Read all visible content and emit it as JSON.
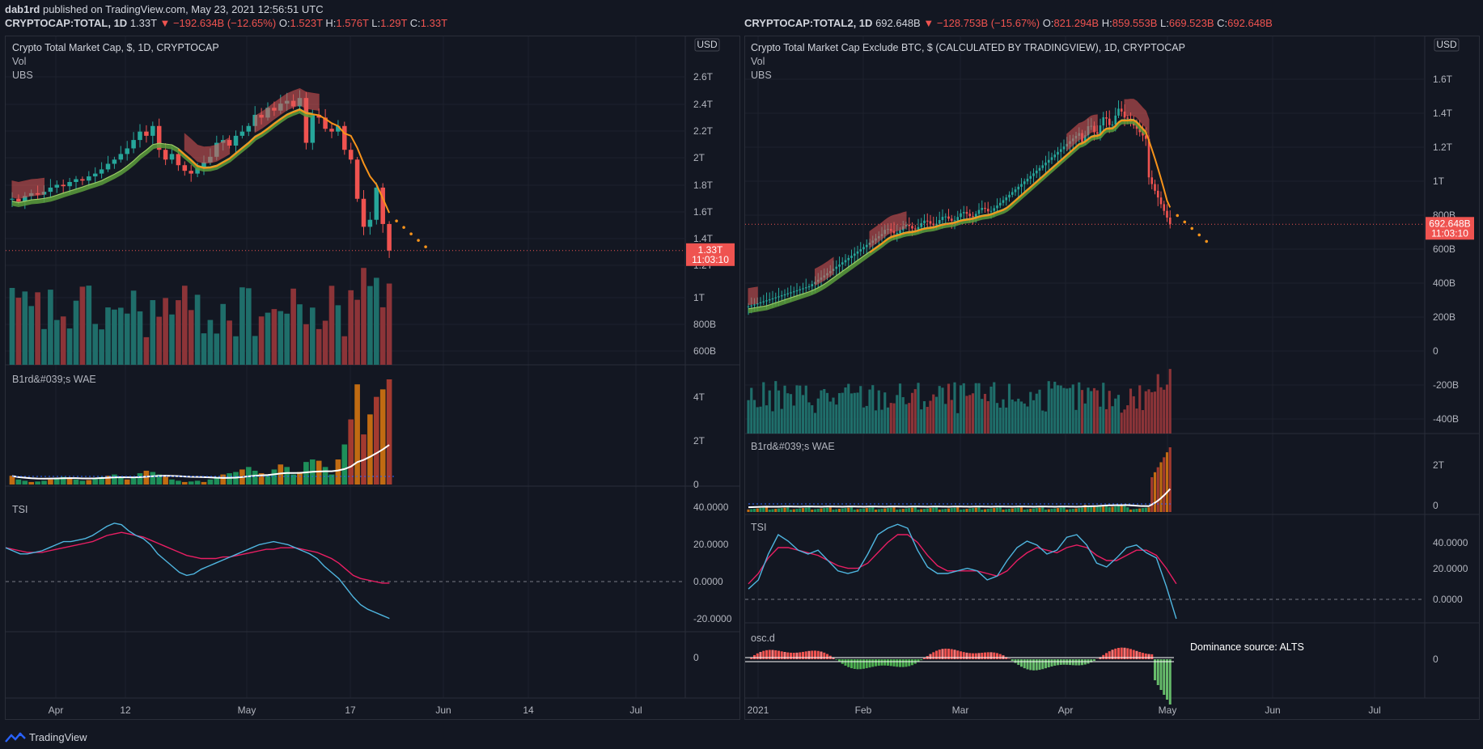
{
  "header": {
    "author": "dab1rd",
    "published": "published on TradingView.com, May 23, 2021 12:56:51 UTC"
  },
  "footer": {
    "brand": "TradingView"
  },
  "colors": {
    "bg": "#131722",
    "grid": "#1e222d",
    "up": "#26a69a",
    "down": "#ef5350",
    "vol_up": "#1f6e6a",
    "vol_down": "#8c3438",
    "orange": "#f7931a",
    "ma_green": "#5c9e3c",
    "tsi_blue": "#4fb6e0",
    "tsi_pink": "#e91e63",
    "wae_green": "#1e8f5a",
    "wae_orange": "#c06b12",
    "wae_red": "#a33a30"
  },
  "chart_data": [
    {
      "type": "candlestick",
      "symbol": "CRYPTOCAP:TOTAL, 1D",
      "ohlc_line": {
        "last": "1.33T",
        "change": "−192.634B (−12.65%)",
        "O": "1.523T",
        "H": "1.576T",
        "L": "1.29T",
        "C": "1.33T"
      },
      "title": "Crypto Total Market Cap, $, 1D, CRYPTOCAP",
      "indicators": [
        "Vol",
        "UBS"
      ],
      "currency_badge": "USD",
      "price_label": "1.33T",
      "countdown": "11:03:10",
      "price_axis": [
        "2.6T",
        "2.4T",
        "2.2T",
        "2T",
        "1.8T",
        "1.6T",
        "1.4T",
        "1.2T",
        "1T",
        "800B",
        "600B"
      ],
      "price_scale": "log",
      "x_labels": [
        "Apr",
        "12",
        "May",
        "17",
        "Jun",
        "14",
        "Jul"
      ],
      "close_approx": [
        1.7,
        1.68,
        1.72,
        1.74,
        1.73,
        1.75,
        1.78,
        1.8,
        1.79,
        1.82,
        1.84,
        1.83,
        1.86,
        1.88,
        1.91,
        1.95,
        1.98,
        2.02,
        2.06,
        2.12,
        2.18,
        2.15,
        2.22,
        2.05,
        1.98,
        2.02,
        1.94,
        1.9,
        1.88,
        1.92,
        1.96,
        2.0,
        2.1,
        2.12,
        2.08,
        2.15,
        2.18,
        2.22,
        2.3,
        2.28,
        2.35,
        2.33,
        2.38,
        2.4,
        2.36,
        2.42,
        2.1,
        2.3,
        2.28,
        2.2,
        2.18,
        2.22,
        2.05,
        1.98,
        1.7,
        1.5,
        1.55,
        1.78,
        1.52,
        1.33
      ],
      "wae": {
        "title": "B1rd&#039;s WAE",
        "axis": [
          "4T",
          "2T",
          "0"
        ],
        "values": [
          0.35,
          0.2,
          0.15,
          0.1,
          0.12,
          0.15,
          0.2,
          0.25,
          0.3,
          0.28,
          0.2,
          0.15,
          0.18,
          0.22,
          0.3,
          0.35,
          0.4,
          0.3,
          0.2,
          0.25,
          0.45,
          0.55,
          0.5,
          0.4,
          0.35,
          0.2,
          0.15,
          0.1,
          0.12,
          0.15,
          0.1,
          0.2,
          0.3,
          0.4,
          0.45,
          0.5,
          0.6,
          0.7,
          0.55,
          0.45,
          0.35,
          0.6,
          0.8,
          0.7,
          0.4,
          0.5,
          0.9,
          1.0,
          0.95,
          0.7,
          0.4,
          1.0,
          1.6,
          2.6,
          4.0,
          2.0,
          2.8,
          3.5,
          3.8,
          4.2
        ]
      },
      "tsi": {
        "title": "TSI",
        "axis": [
          "40.0000",
          "20.0000",
          "0.0000",
          "-20.0000"
        ],
        "tsi": [
          22,
          20,
          18,
          18,
          19,
          20,
          22,
          24,
          26,
          26,
          27,
          28,
          30,
          33,
          36,
          38,
          37,
          33,
          30,
          28,
          24,
          18,
          14,
          10,
          6,
          4,
          5,
          8,
          10,
          12,
          14,
          16,
          18,
          20,
          22,
          24,
          25,
          26,
          25,
          24,
          22,
          20,
          18,
          15,
          10,
          6,
          2,
          -4,
          -10,
          -15,
          -18,
          -20,
          -22,
          -24
        ],
        "signal": [
          22,
          21,
          20,
          19,
          19,
          19,
          20,
          21,
          22,
          23,
          24,
          25,
          26,
          28,
          30,
          31,
          32,
          31,
          30,
          29,
          27,
          25,
          23,
          21,
          19,
          17,
          16,
          15,
          15,
          15,
          16,
          16,
          17,
          18,
          19,
          20,
          21,
          21,
          22,
          22,
          22,
          21,
          20,
          19,
          17,
          15,
          12,
          8,
          4,
          2,
          1,
          0,
          -1,
          -1
        ]
      },
      "empty_pane_axis": [
        "0"
      ]
    },
    {
      "type": "candlestick",
      "symbol": "CRYPTOCAP:TOTAL2, 1D",
      "ohlc_line": {
        "last": "692.648B",
        "change": "−128.753B (−15.67%)",
        "O": "821.294B",
        "H": "859.553B",
        "L": "669.523B",
        "C": "692.648B"
      },
      "title": "Crypto Total Market Cap Exclude BTC, $ (CALCULATED BY TRADINGVIEW), 1D, CRYPTOCAP",
      "indicators": [
        "Vol",
        "UBS"
      ],
      "currency_badge": "USD",
      "price_label": "692.648B",
      "countdown": "11:03:10",
      "price_axis": [
        "1.6T",
        "1.4T",
        "1.2T",
        "1T",
        "800B",
        "600B",
        "400B",
        "200B",
        "0",
        "-200B",
        "-400B"
      ],
      "x_labels": [
        "2021",
        "Feb",
        "Mar",
        "Apr",
        "May",
        "Jun",
        "Jul"
      ],
      "wae": {
        "title": "B1rd&#039;s WAE",
        "axis": [
          "2T",
          "0"
        ]
      },
      "tsi": {
        "title": "TSI",
        "axis": [
          "40.0000",
          "20.0000",
          "0.0000"
        ],
        "tsi": [
          8,
          15,
          35,
          50,
          45,
          38,
          35,
          38,
          30,
          22,
          20,
          22,
          35,
          50,
          55,
          58,
          55,
          38,
          25,
          20,
          20,
          22,
          24,
          22,
          15,
          18,
          30,
          40,
          45,
          42,
          35,
          38,
          48,
          50,
          42,
          28,
          25,
          32,
          40,
          42,
          36,
          32,
          10,
          -15
        ],
        "signal": [
          12,
          20,
          32,
          40,
          40,
          38,
          36,
          34,
          30,
          26,
          24,
          24,
          28,
          36,
          44,
          50,
          50,
          44,
          34,
          26,
          22,
          22,
          22,
          22,
          20,
          18,
          22,
          30,
          36,
          40,
          38,
          36,
          40,
          42,
          40,
          34,
          30,
          30,
          34,
          38,
          38,
          34,
          24,
          12
        ]
      },
      "osc": {
        "title": "osc.d",
        "axis": [
          "0"
        ],
        "annotation": "Dominance source: ALTS"
      }
    }
  ]
}
